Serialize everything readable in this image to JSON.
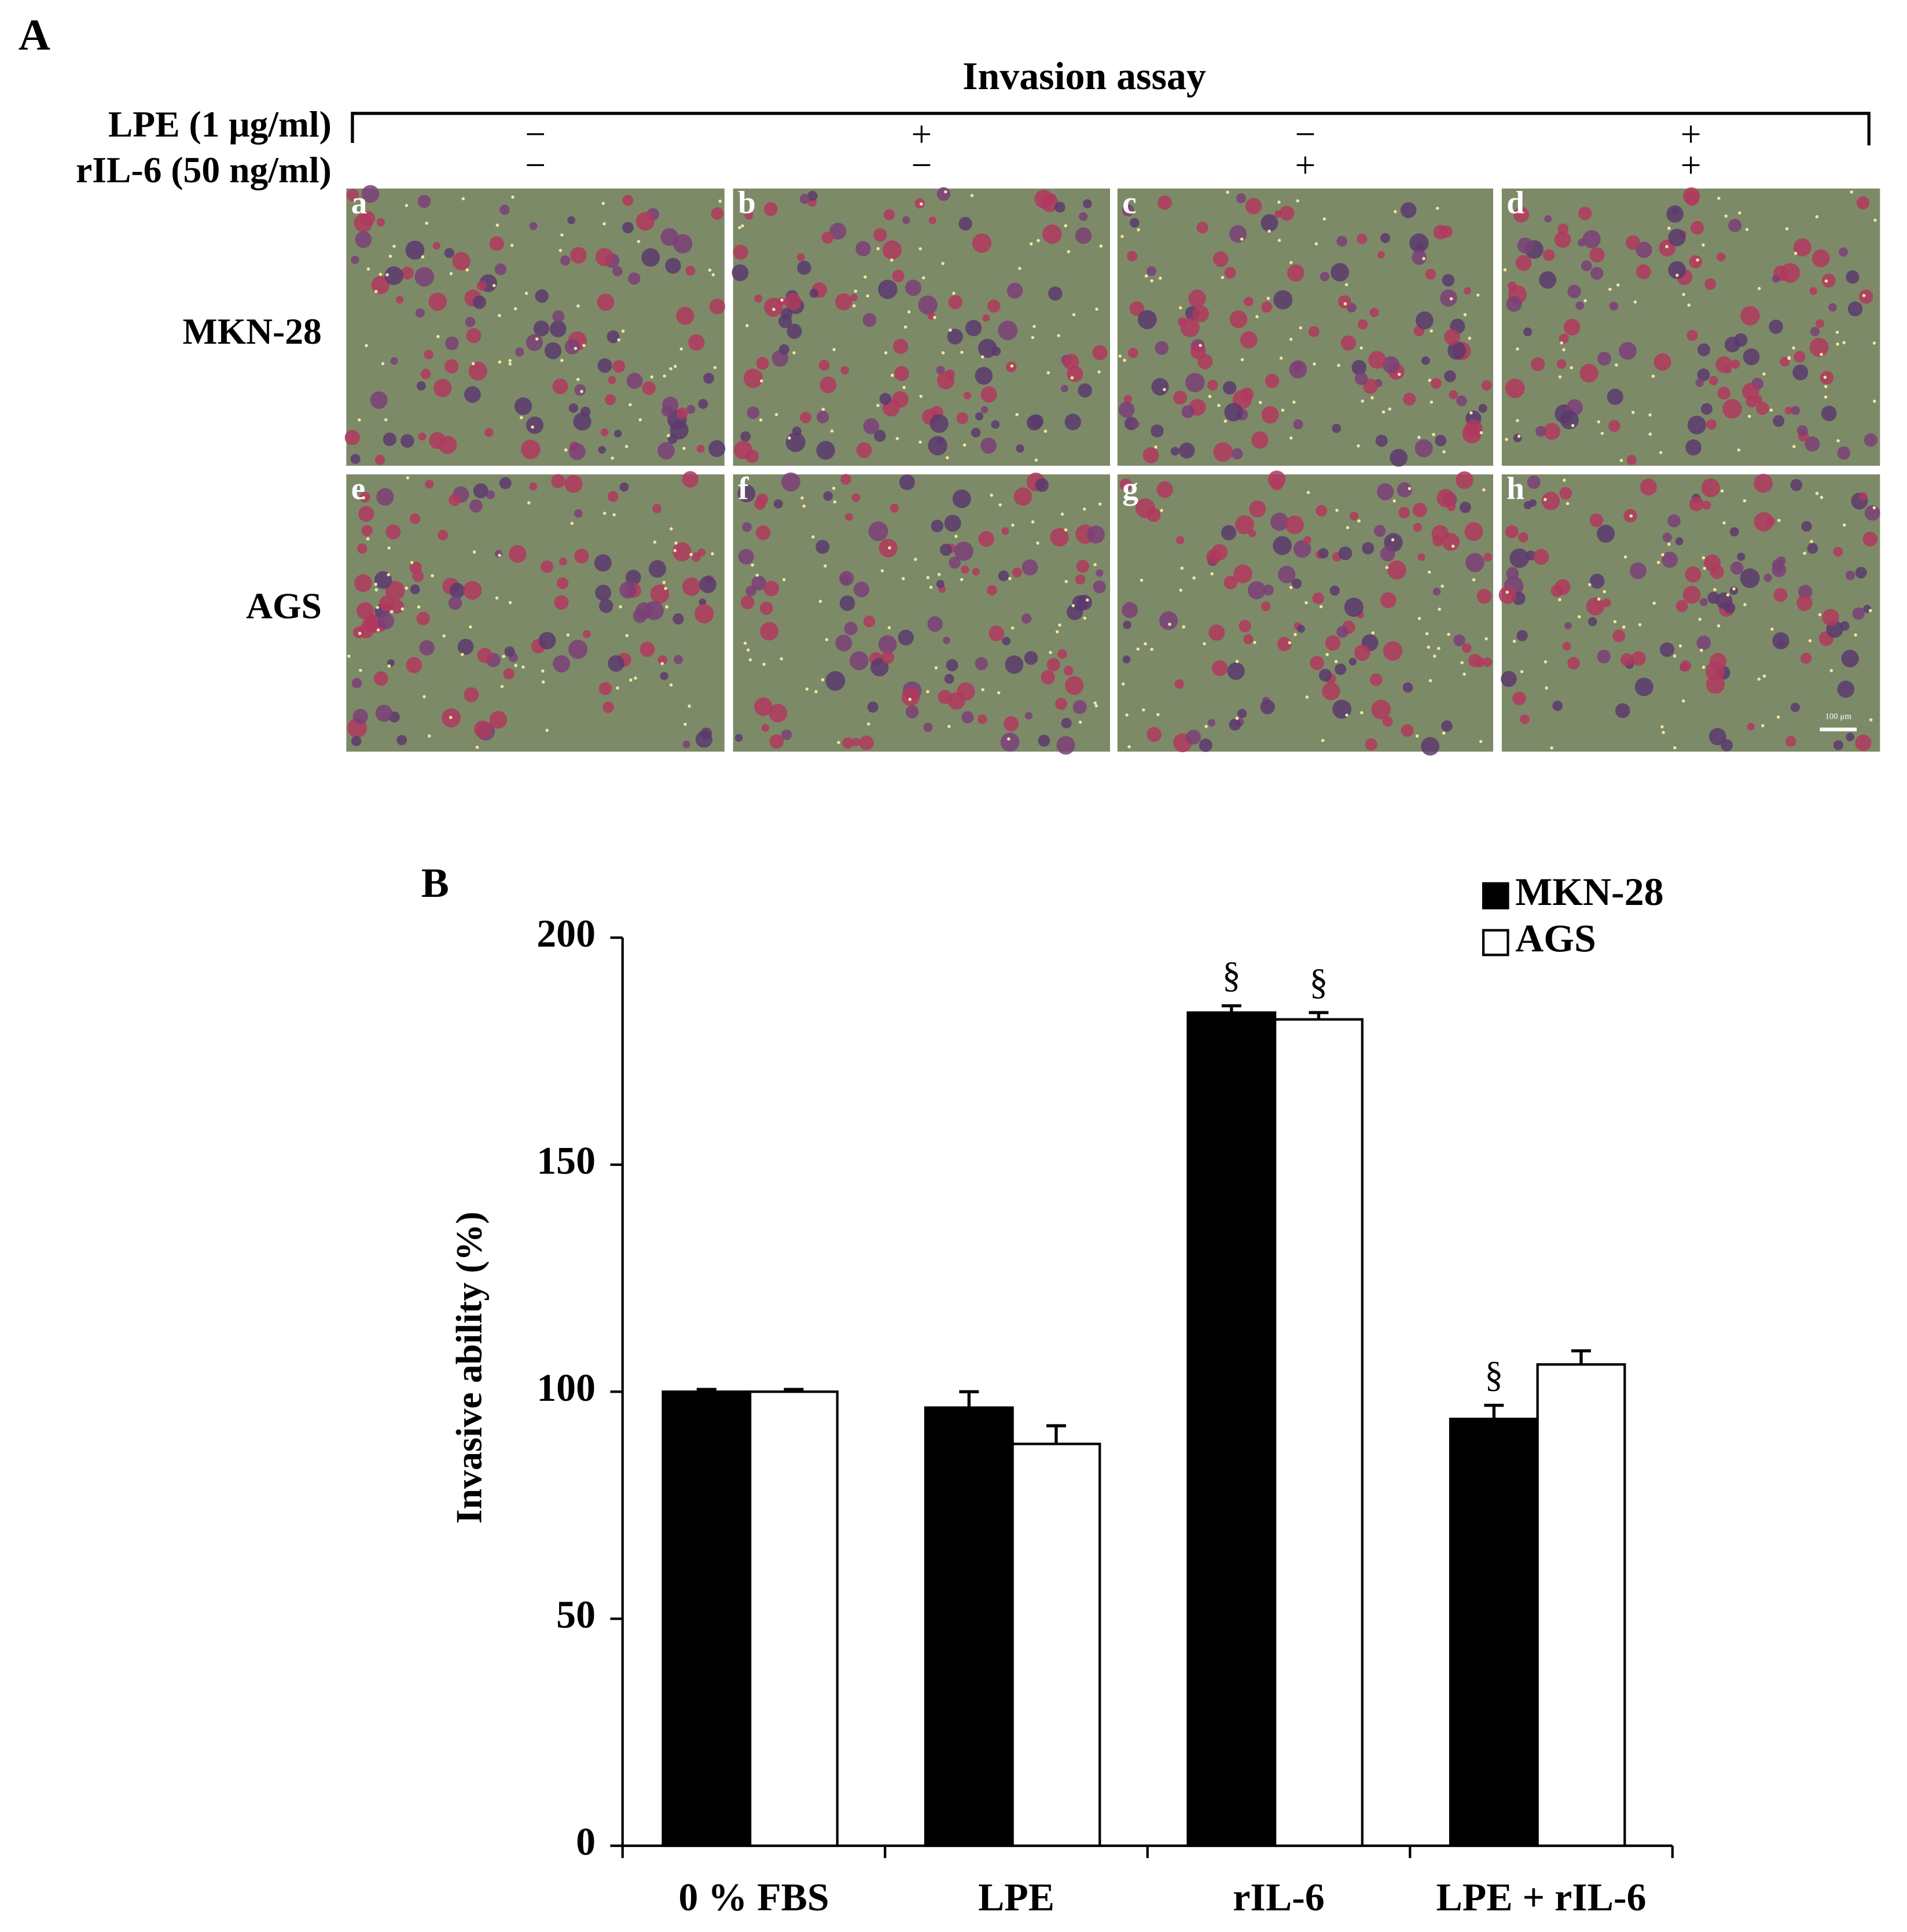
{
  "panel_a": {
    "label": "A",
    "title": "Invasion assay",
    "row_headers": [
      "LPE (1 μg/ml)",
      "rIL-6 (50 ng/ml)"
    ],
    "conditions": [
      {
        "lpe": "−",
        "ril6": "−"
      },
      {
        "lpe": "+",
        "ril6": "−"
      },
      {
        "lpe": "−",
        "ril6": "+"
      },
      {
        "lpe": "+",
        "ril6": "+"
      }
    ],
    "cell_lines": [
      "MKN-28",
      "AGS"
    ],
    "image_letters": [
      [
        "a",
        "b",
        "c",
        "d"
      ],
      [
        "e",
        "f",
        "g",
        "h"
      ]
    ],
    "scale_bar": "100 μm"
  },
  "chart_data": {
    "type": "bar",
    "panel_label": "B",
    "y_label": "Invasive ability (%)",
    "categories": [
      "0 % FBS",
      "LPE",
      "rIL-6",
      "LPE + rIL-6"
    ],
    "series": [
      {
        "name": "MKN-28",
        "color": "#000000",
        "values": [
          100,
          96.5,
          183.5,
          94
        ],
        "errors": [
          0.5,
          3.5,
          1.5,
          3
        ],
        "significance": [
          null,
          null,
          "§",
          "§"
        ]
      },
      {
        "name": "AGS",
        "color": "#ffffff",
        "values": [
          100,
          88.5,
          182,
          106
        ],
        "errors": [
          0.5,
          4,
          1.5,
          3
        ],
        "significance": [
          null,
          null,
          "§",
          null
        ]
      }
    ],
    "ylim": [
      0,
      200
    ],
    "yticks": [
      0,
      50,
      100,
      150,
      200
    ],
    "grid": false,
    "legend": "top-right"
  }
}
